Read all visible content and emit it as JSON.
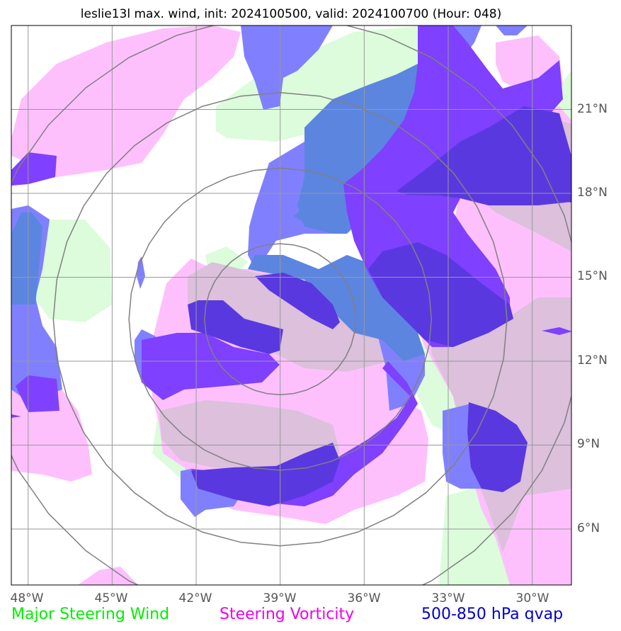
{
  "title": "leslie13l max. wind, init: 2024100500, valid: 2024100700 (Hour: 048)",
  "lon_labels": [
    "48°W",
    "45°W",
    "42°W",
    "39°W",
    "36°W",
    "33°W",
    "30°W"
  ],
  "lat_labels": [
    "21°N",
    "18°N",
    "15°N",
    "12°N",
    "9°N",
    "6°N"
  ],
  "legend": {
    "wind": {
      "label": "Major Steering Wind",
      "color": "#00ee00"
    },
    "vorticity": {
      "label": "Steering Vorticity",
      "color": "#ee00ee"
    },
    "qvap": {
      "label": "500-850 hPa qvap",
      "color": "#0000cc"
    }
  },
  "colors": {
    "wind_fill": "#dcfcdc",
    "vorticity_fill": "#fdc0fd",
    "overlap_fill": "#dcc0dc",
    "qvap_light": "#8080ff",
    "qvap_mid": "#5c85e0",
    "qvap_dark": "#7f40ff",
    "qvap_darkest": "#5a38e0",
    "grid": "#999999",
    "rings": "#808080"
  },
  "map": {
    "lon_range": [
      -48.6,
      -28.6
    ],
    "lat_range": [
      4.0,
      24.0
    ],
    "center": {
      "lon": -39.0,
      "lat": 13.5
    },
    "ring_radii_deg": [
      2.7,
      5.4,
      8.1,
      10.8
    ]
  }
}
